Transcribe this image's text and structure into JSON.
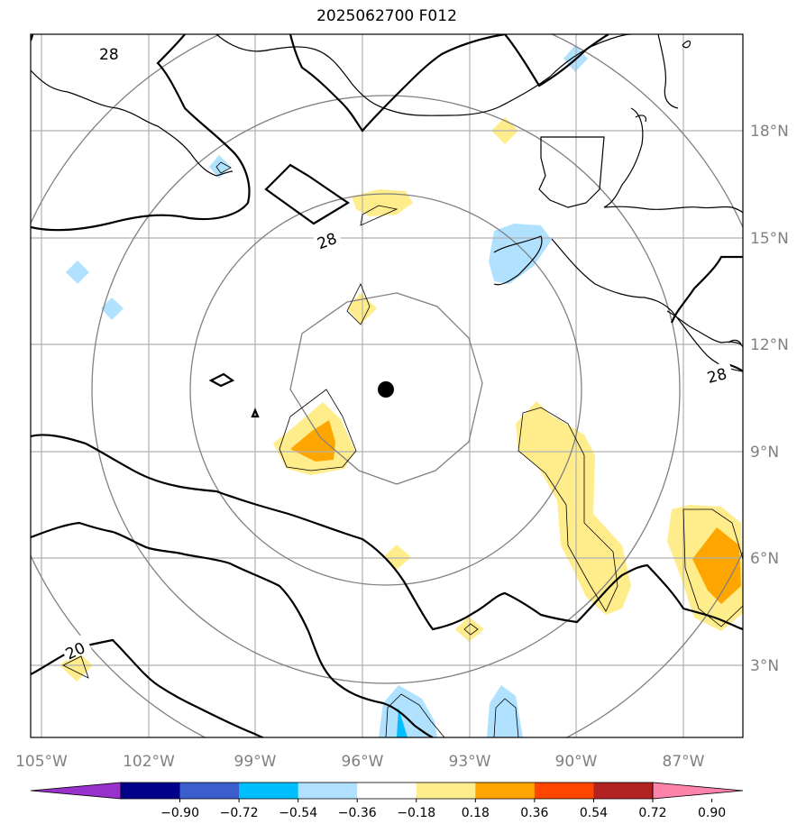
{
  "title": "2025062700 F012",
  "lon_labels": [
    "105°W",
    "102°W",
    "99°W",
    "96°W",
    "93°W",
    "90°W",
    "87°W"
  ],
  "lat_labels": [
    "18°N",
    "15°N",
    "12°N",
    "9°N",
    "6°N",
    "3°N"
  ],
  "contour_labels": [
    "28",
    "28",
    "28",
    "20"
  ],
  "colorbar": {
    "colors": [
      "#9932cc",
      "#00008b",
      "#3a5fcd",
      "#00bfff",
      "#b0e2ff",
      "#ffffff",
      "#ffec8b",
      "#ffa500",
      "#ff4500",
      "#b22222",
      "#ff82ab"
    ],
    "labels": [
      "−0.90",
      "−0.72",
      "−0.54",
      "−0.36",
      "−0.18",
      "0.18",
      "0.36",
      "0.54",
      "0.72",
      "0.90"
    ]
  },
  "center_marker": "storm-center-dot"
}
